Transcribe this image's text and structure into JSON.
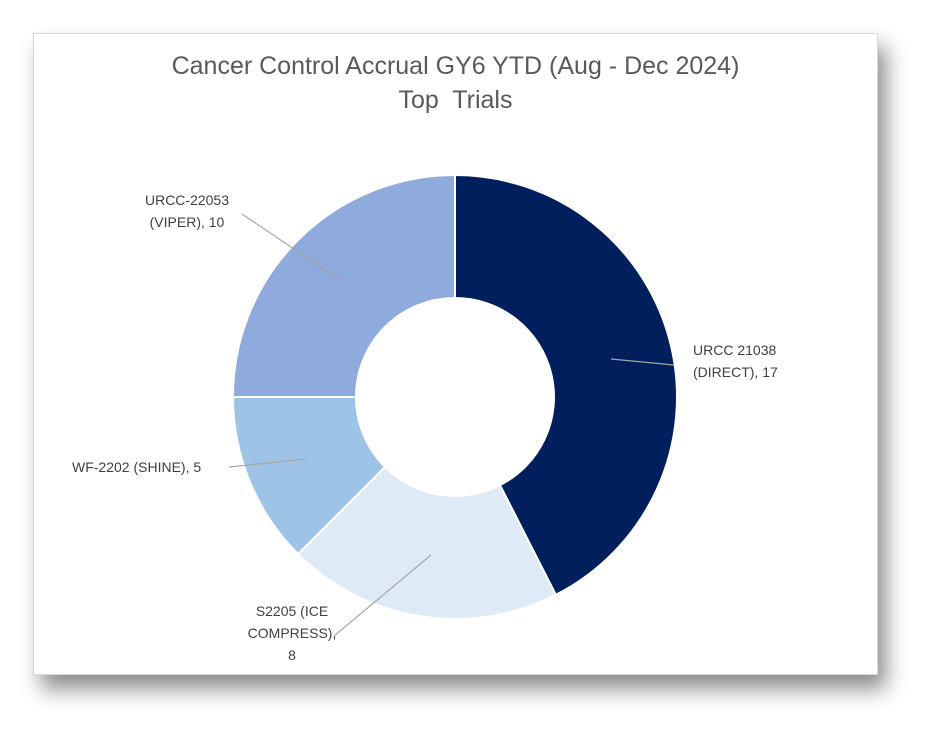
{
  "chart_data": {
    "type": "pie",
    "variant": "doughnut",
    "title": "Cancer Control Accrual GY6 YTD (Aug - Dec 2024)",
    "subtitle": "Top  Trials",
    "slices": [
      {
        "label": "URCC 21038 (DIRECT)",
        "value": 17,
        "color": "#001f5c",
        "label_lines": [
          "URCC 21038",
          "(DIRECT), 17"
        ]
      },
      {
        "label": "S2205 (ICE COMPRESS)",
        "value": 8,
        "color": "#deeaf6",
        "label_lines": [
          "S2205 (ICE",
          "COMPRESS),",
          "8"
        ]
      },
      {
        "label": "WF-2202 (SHINE)",
        "value": 5,
        "color": "#9dc3e6",
        "label_lines": [
          "WF-2202 (SHINE), 5"
        ]
      },
      {
        "label": "URCC-22053 (VIPER)",
        "value": 10,
        "color": "#8faadc",
        "label_lines": [
          "URCC-22053",
          "(VIPER), 10"
        ]
      }
    ],
    "legend": "none",
    "data_labels": "outside with leader lines"
  }
}
